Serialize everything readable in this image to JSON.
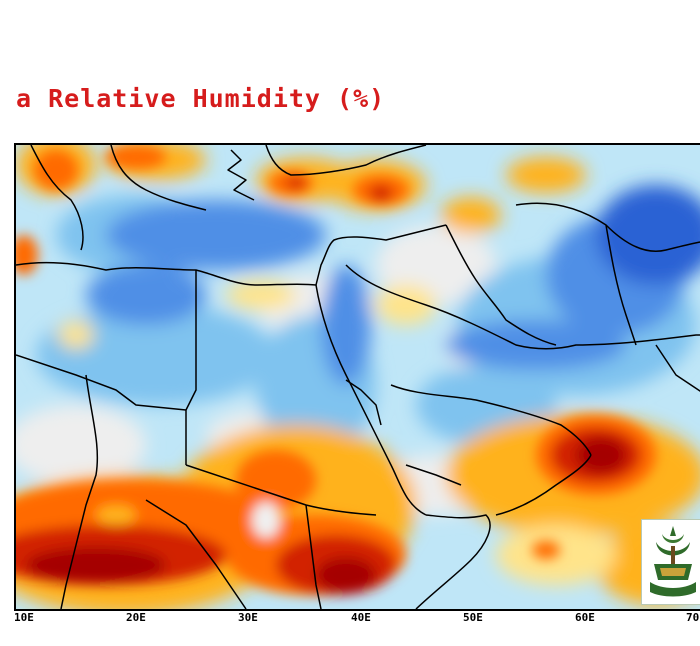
{
  "title": "a Relative Humidity (%)",
  "map": {
    "field": "relative-humidity",
    "color_scale": [
      "#a50000",
      "#d22000",
      "#ff6a00",
      "#ffb21d",
      "#ffe48a",
      "#f0f0f0",
      "#bfe6f7",
      "#7fc3ef",
      "#4f8fe6",
      "#2a62d4"
    ],
    "lon_labels": [
      "10E",
      "20E",
      "30E",
      "40E",
      "50E",
      "60E",
      "70E"
    ]
  },
  "logo": {
    "name": "university-emblem"
  }
}
